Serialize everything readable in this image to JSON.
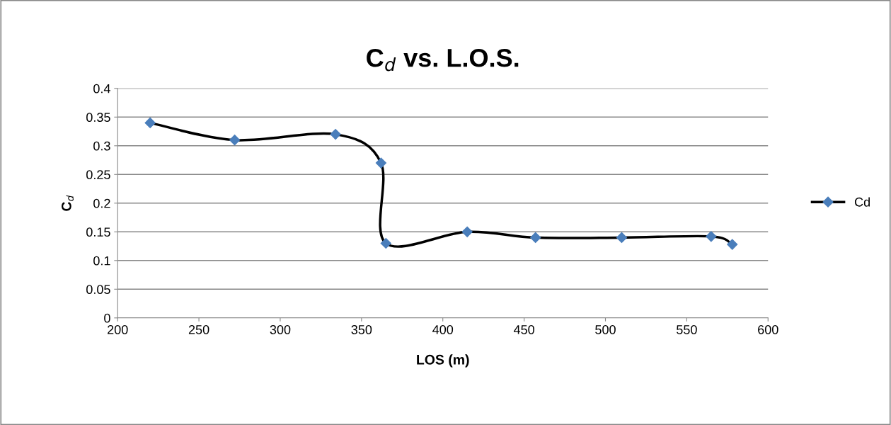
{
  "chart_data": {
    "type": "line",
    "title": "C$_{d}$ vs. L.O.S.",
    "xlabel": "LOS (m)",
    "ylabel": "C$_{d}$",
    "x": [
      220,
      272,
      334,
      362,
      365,
      415,
      457,
      510,
      565,
      578
    ],
    "series": [
      {
        "name": "Cd",
        "color": "#4a7ebb",
        "values": [
          0.34,
          0.31,
          0.32,
          0.27,
          0.13,
          0.15,
          0.14,
          0.14,
          0.142,
          0.128
        ]
      }
    ],
    "xlim": [
      200,
      600
    ],
    "xticks": [
      200,
      250,
      300,
      350,
      400,
      450,
      500,
      550,
      600
    ],
    "ylim": [
      0,
      0.4
    ],
    "yticks": [
      0,
      0.05,
      0.1,
      0.15,
      0.2,
      0.25,
      0.3,
      0.35,
      0.4
    ],
    "grid": "y",
    "legend": "right",
    "marker": "diamond",
    "line_style": "solid"
  }
}
